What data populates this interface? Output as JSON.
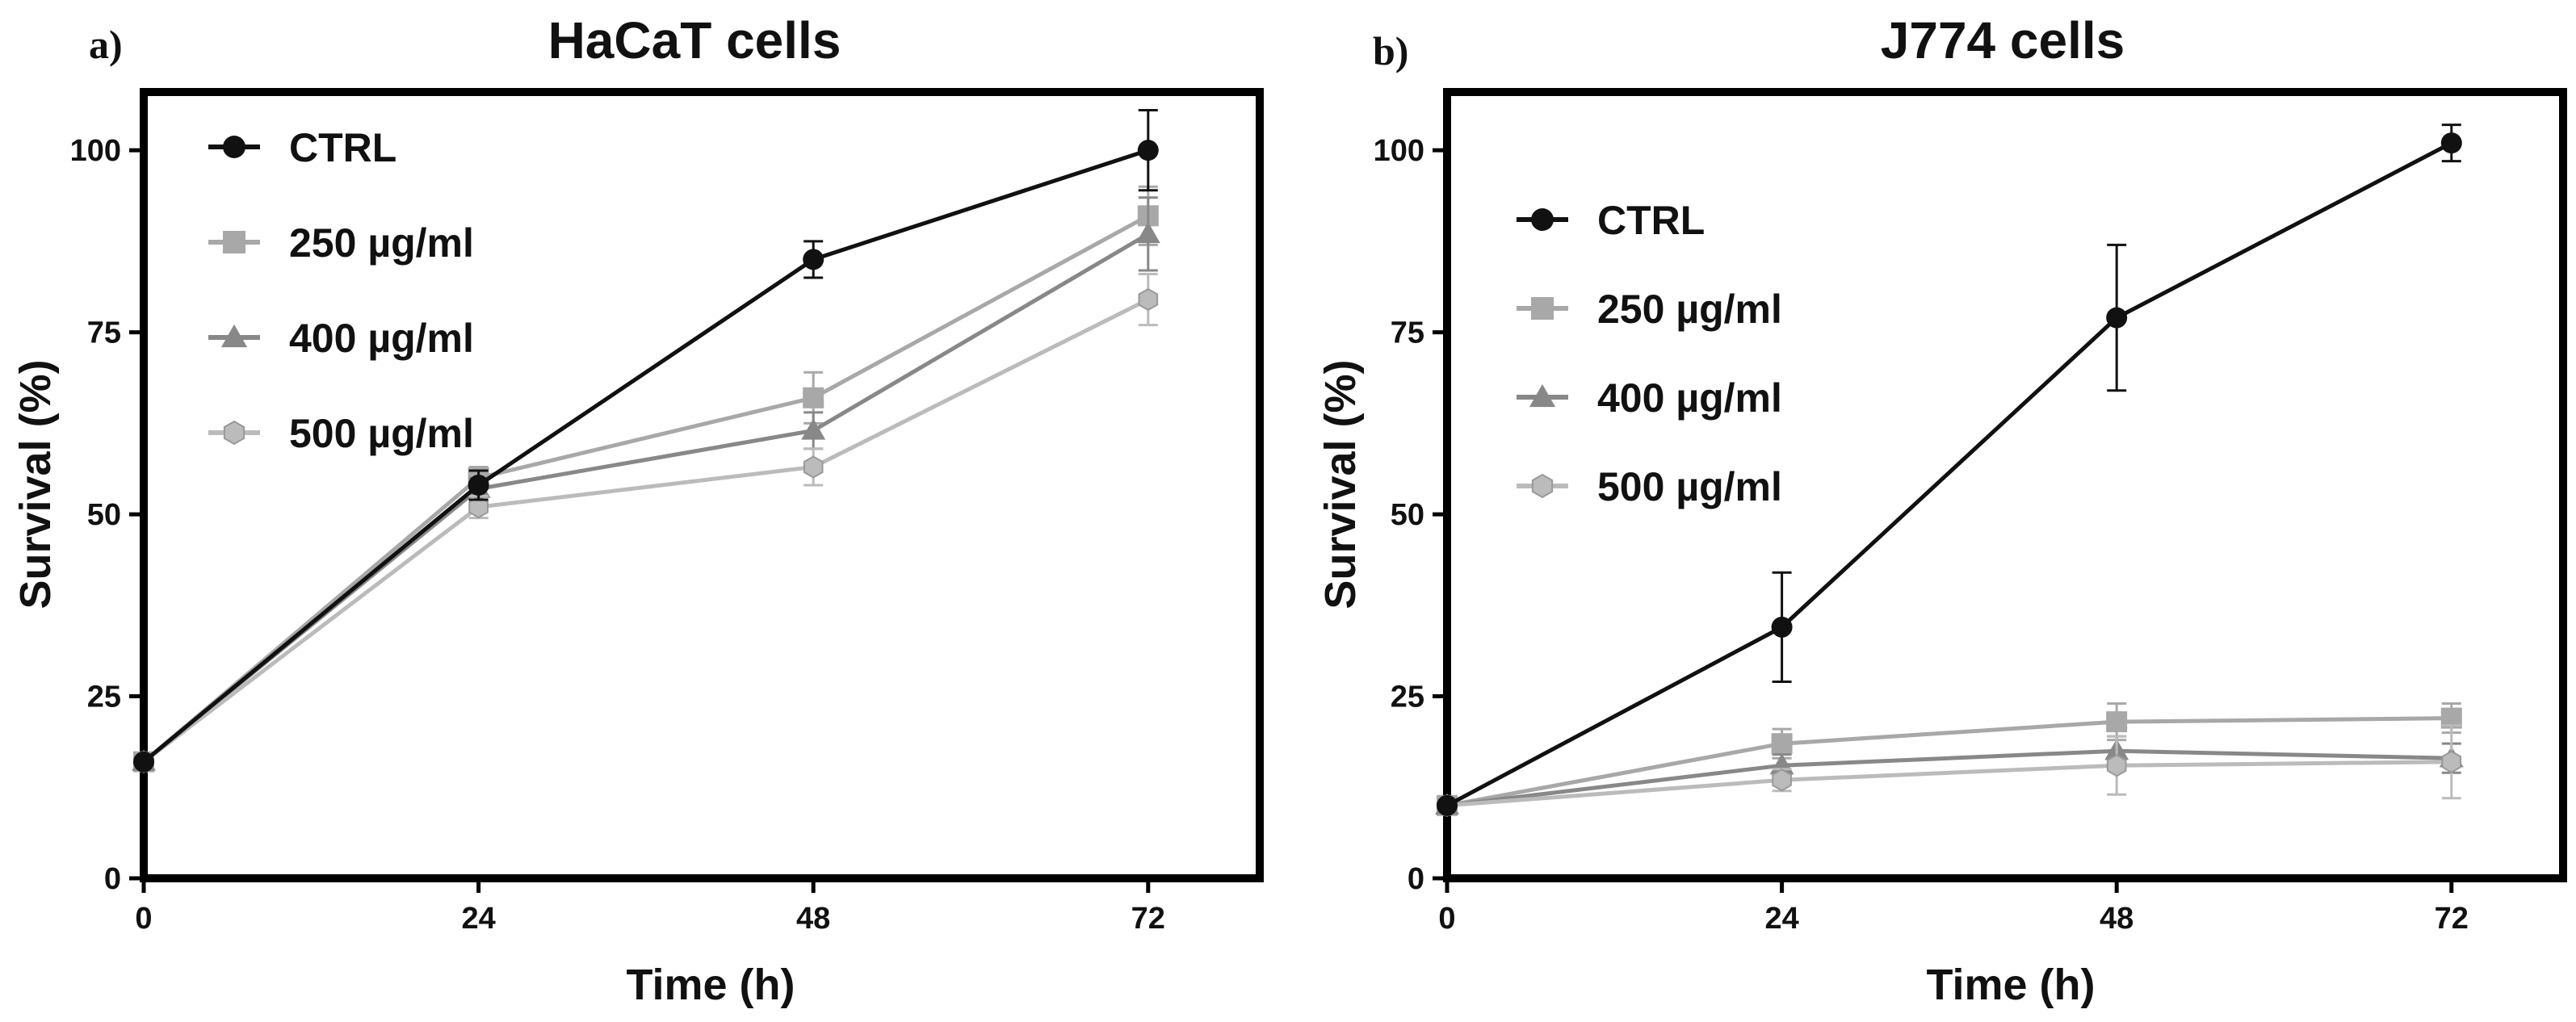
{
  "chart_data": [
    {
      "type": "line",
      "panel_label": "a)",
      "title": "HaCaT cells",
      "xlabel": "Time (h)",
      "ylabel": "Survival (%)",
      "x": [
        0,
        24,
        48,
        72
      ],
      "xticks": [
        "0",
        "24",
        "48",
        "72"
      ],
      "yticks": [
        "0",
        "25",
        "50",
        "75",
        "100"
      ],
      "xlim": [
        0,
        80
      ],
      "ylim": [
        0,
        108
      ],
      "legend_position": "top-left",
      "series": [
        {
          "name": "CTRL",
          "marker": "circle",
          "color": "#111111",
          "values": [
            16,
            54,
            85,
            100
          ],
          "errors": [
            0,
            2,
            2.5,
            5.5
          ]
        },
        {
          "name": "250 µg/ml",
          "marker": "square",
          "color": "#a8a8a8",
          "values": [
            16,
            55,
            66,
            91
          ],
          "errors": [
            0,
            1.5,
            3.5,
            4
          ]
        },
        {
          "name": "400 µg/ml",
          "marker": "triangle",
          "color": "#888888",
          "values": [
            16,
            53.5,
            61.5,
            88.5
          ],
          "errors": [
            0,
            1.5,
            2.5,
            5
          ]
        },
        {
          "name": "500 µg/ml",
          "marker": "hexagon",
          "color": "#bbbbbb",
          "values": [
            16,
            51,
            56.5,
            79.5
          ],
          "errors": [
            0,
            1.5,
            2.5,
            3.5
          ]
        }
      ]
    },
    {
      "type": "line",
      "panel_label": "b)",
      "title": "J774 cells",
      "xlabel": "Time (h)",
      "ylabel": "Survival (%)",
      "x": [
        0,
        24,
        48,
        72
      ],
      "xticks": [
        "0",
        "24",
        "48",
        "72"
      ],
      "yticks": [
        "0",
        "25",
        "50",
        "75",
        "100"
      ],
      "xlim": [
        0,
        80
      ],
      "ylim": [
        0,
        108
      ],
      "legend_position": "top-left",
      "series": [
        {
          "name": "CTRL",
          "marker": "circle",
          "color": "#111111",
          "values": [
            10,
            34.5,
            77,
            101
          ],
          "errors": [
            0,
            7.5,
            10,
            2.5
          ]
        },
        {
          "name": "250 µg/ml",
          "marker": "square",
          "color": "#a8a8a8",
          "values": [
            10,
            18.5,
            21.5,
            22
          ],
          "errors": [
            0,
            2,
            2.5,
            2
          ]
        },
        {
          "name": "400 µg/ml",
          "marker": "triangle",
          "color": "#888888",
          "values": [
            10,
            15.5,
            17.5,
            16.5
          ],
          "errors": [
            0,
            1.5,
            2,
            2
          ]
        },
        {
          "name": "500 µg/ml",
          "marker": "hexagon",
          "color": "#bbbbbb",
          "values": [
            10,
            13.5,
            15.5,
            16
          ],
          "errors": [
            0,
            1.5,
            4,
            5
          ]
        }
      ]
    }
  ]
}
